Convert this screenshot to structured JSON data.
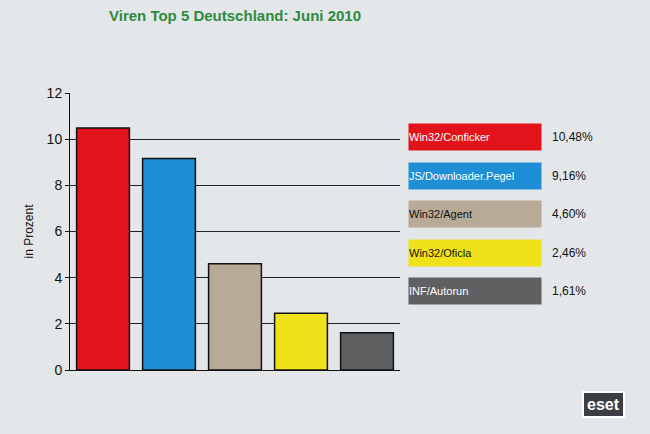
{
  "chart_data": {
    "type": "bar",
    "title": "Viren Top 5 Deutschland: Juni 2010",
    "y_label": "in Prozent",
    "categories": [
      "Win32/Conficker",
      "JS/Downloader.Pegel",
      "Win32/Agent",
      "Win32/Oficla",
      "INF/Autorun"
    ],
    "values": [
      10.48,
      9.16,
      4.6,
      2.46,
      1.61
    ],
    "value_labels": [
      "10,48%",
      "9,16%",
      "4,60%",
      "2,46%",
      "1,61%"
    ],
    "colors": [
      "#e3131b",
      "#1e8fd6",
      "#b7aa96",
      "#f0e21a",
      "#5f6062"
    ],
    "ylim": [
      0,
      12
    ],
    "yticks": [
      0,
      2,
      4,
      6,
      8,
      10,
      12
    ],
    "grid": true,
    "legend": "right",
    "tick_labels": "y",
    "annotations": [
      "eset"
    ]
  }
}
